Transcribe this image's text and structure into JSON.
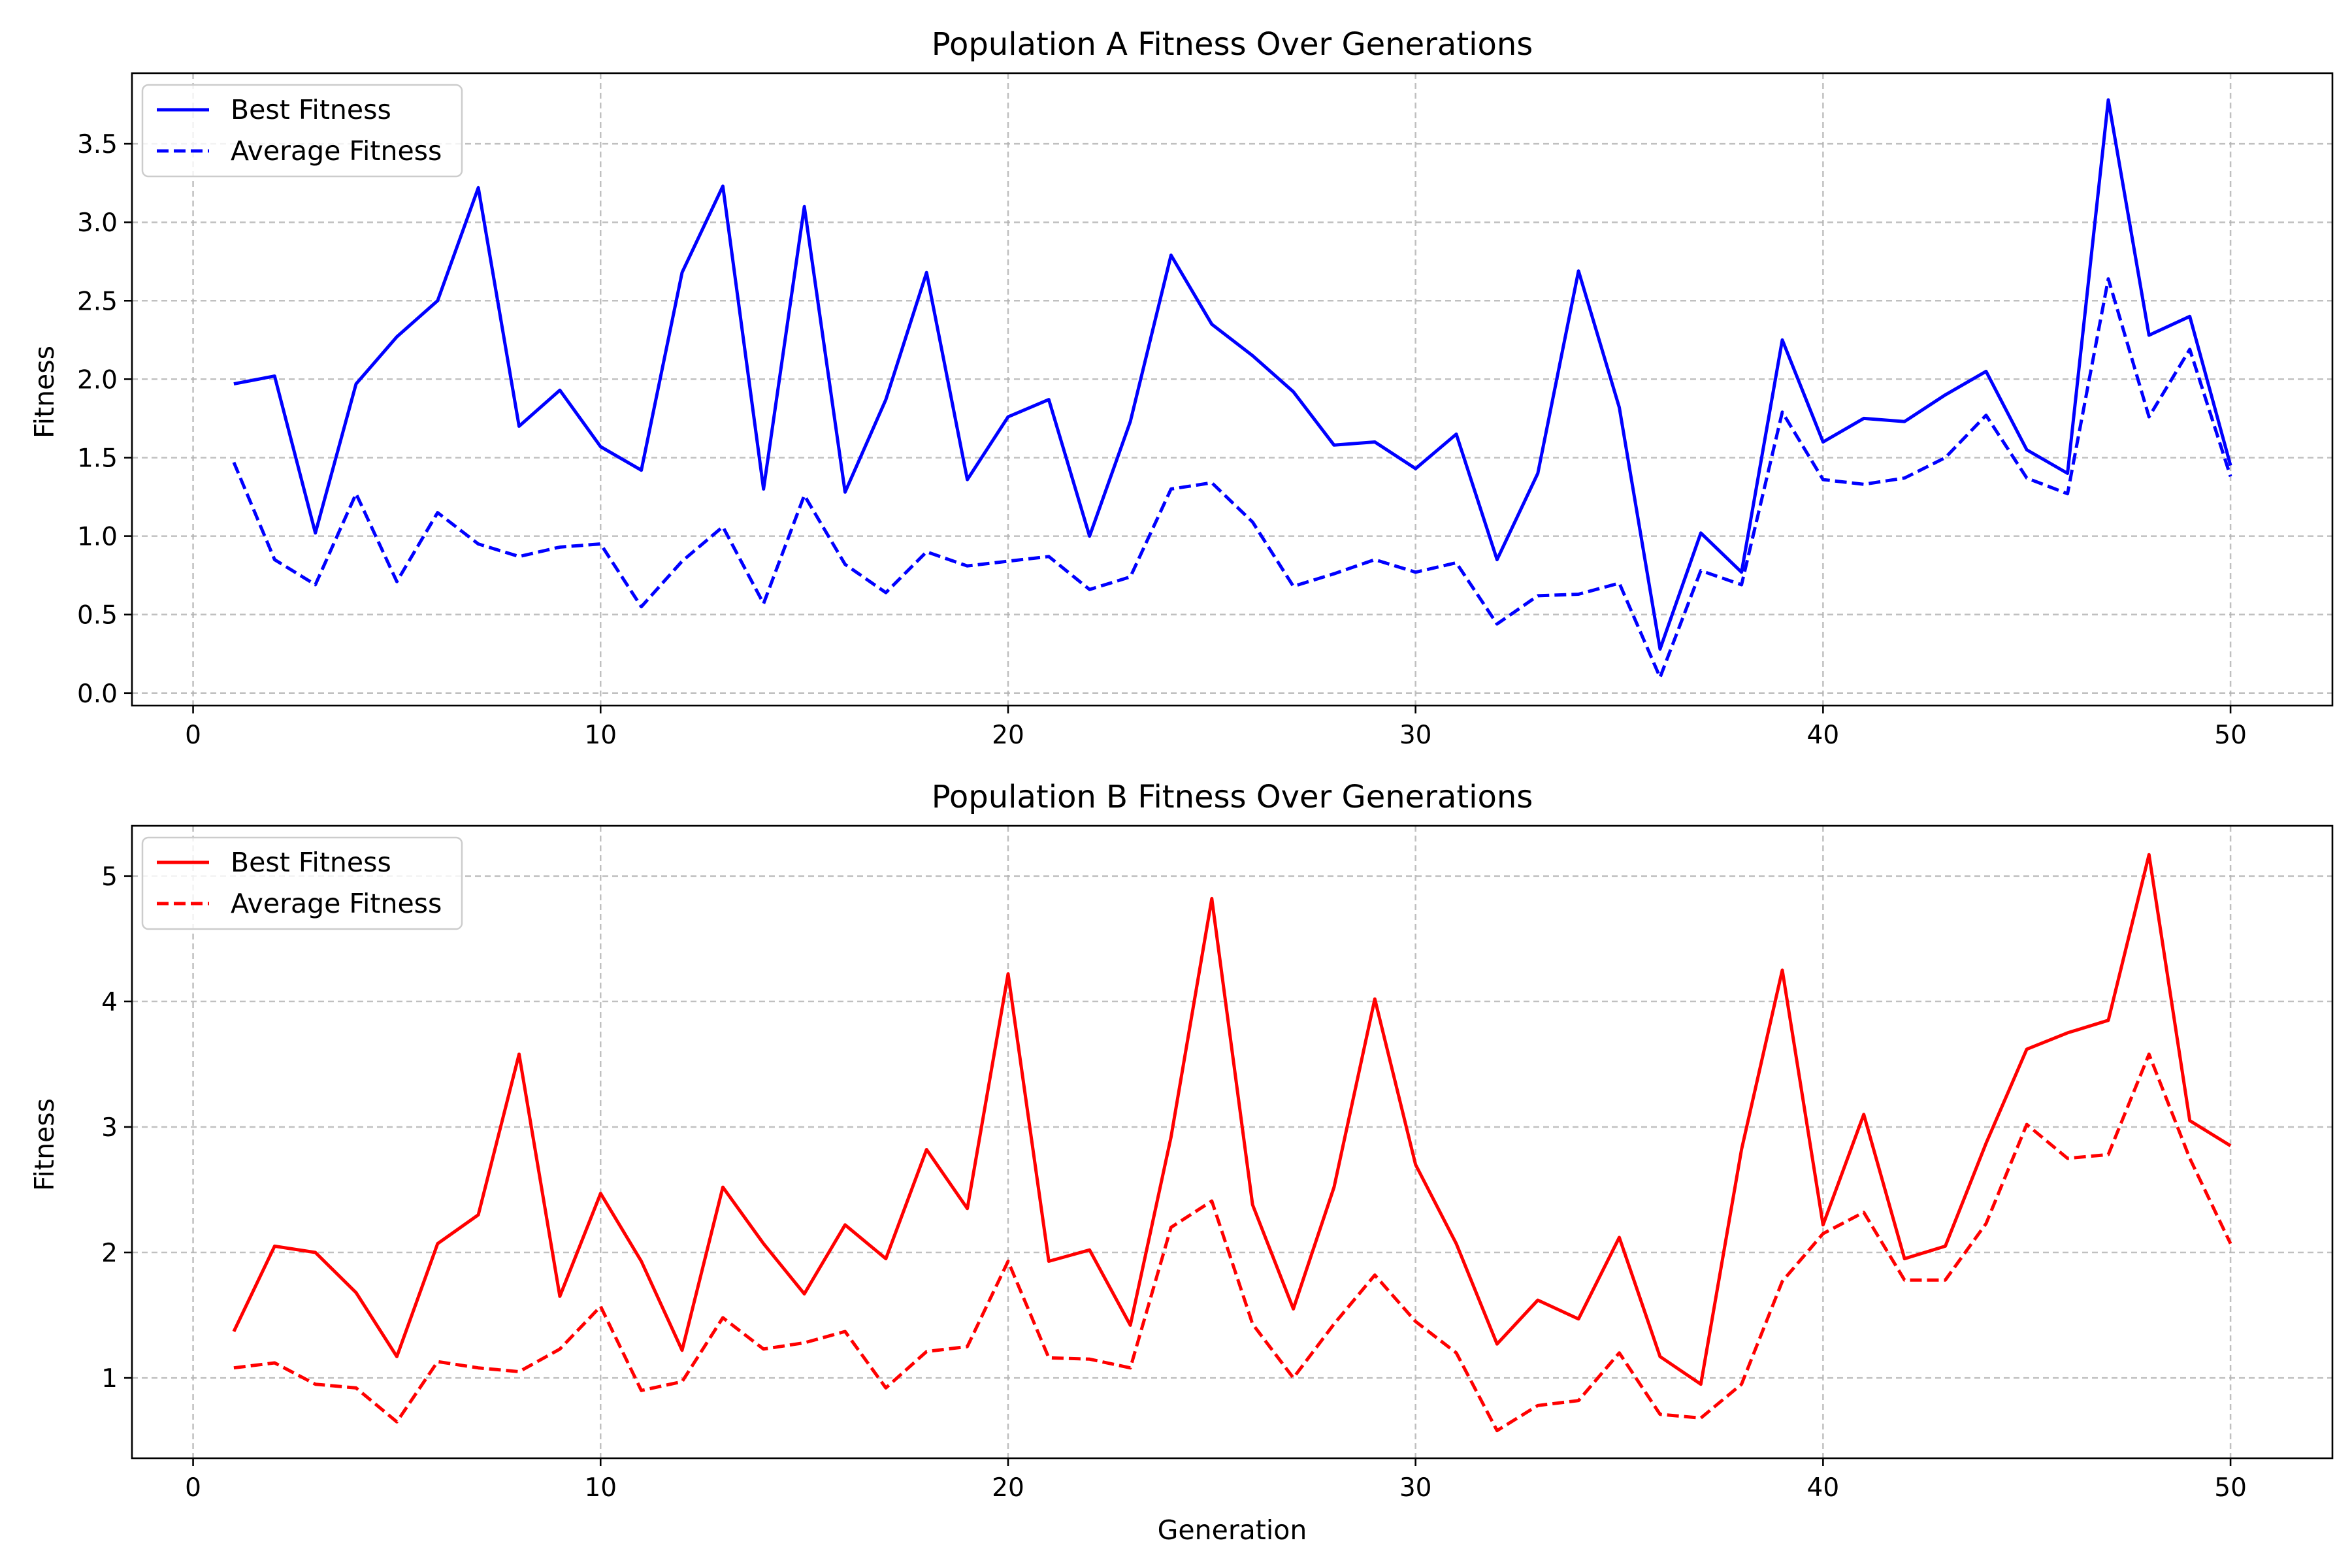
{
  "chart_data": [
    {
      "type": "line",
      "title": "Population A Fitness Over Generations",
      "xlabel": "",
      "ylabel": "Fitness",
      "xlim": [
        -1.5,
        52.5
      ],
      "ylim": [
        -0.08,
        3.95
      ],
      "xticks": [
        0,
        10,
        20,
        30,
        40,
        50
      ],
      "xtick_labels": [
        "0",
        "10",
        "20",
        "30",
        "40",
        "50"
      ],
      "yticks": [
        0.0,
        0.5,
        1.0,
        1.5,
        2.0,
        2.5,
        3.0,
        3.5
      ],
      "ytick_labels": [
        "0.0",
        "0.5",
        "1.0",
        "1.5",
        "2.0",
        "2.5",
        "3.0",
        "3.5"
      ],
      "grid": true,
      "legend_position": "top-left",
      "x": [
        1,
        2,
        3,
        4,
        5,
        6,
        7,
        8,
        9,
        10,
        11,
        12,
        13,
        14,
        15,
        16,
        17,
        18,
        19,
        20,
        21,
        22,
        23,
        24,
        25,
        26,
        27,
        28,
        29,
        30,
        31,
        32,
        33,
        34,
        35,
        36,
        37,
        38,
        39,
        40,
        41,
        42,
        43,
        44,
        45,
        46,
        47,
        48,
        49,
        50
      ],
      "series": [
        {
          "name": "Best Fitness",
          "color": "#0000ff",
          "style": "solid",
          "values": [
            1.97,
            2.02,
            1.02,
            1.97,
            2.27,
            2.5,
            3.22,
            1.7,
            1.93,
            1.57,
            1.42,
            2.68,
            3.23,
            1.3,
            3.1,
            1.28,
            1.87,
            2.68,
            1.36,
            1.76,
            1.87,
            1.0,
            1.73,
            2.79,
            2.35,
            2.15,
            1.92,
            1.58,
            1.6,
            1.43,
            1.65,
            0.85,
            1.4,
            2.69,
            1.82,
            0.28,
            1.02,
            0.77,
            2.25,
            1.6,
            1.75,
            1.73,
            1.9,
            2.05,
            1.55,
            1.4,
            3.78,
            2.28,
            2.4,
            1.45
          ]
        },
        {
          "name": "Average Fitness",
          "color": "#0000ff",
          "style": "dashed",
          "values": [
            1.47,
            0.85,
            0.69,
            1.27,
            0.71,
            1.15,
            0.95,
            0.87,
            0.93,
            0.95,
            0.55,
            0.84,
            1.06,
            0.57,
            1.26,
            0.82,
            0.64,
            0.9,
            0.81,
            0.84,
            0.87,
            0.66,
            0.74,
            1.3,
            1.34,
            1.09,
            0.68,
            0.76,
            0.85,
            0.77,
            0.83,
            0.44,
            0.62,
            0.63,
            0.7,
            0.1,
            0.78,
            0.69,
            1.79,
            1.36,
            1.33,
            1.37,
            1.5,
            1.77,
            1.37,
            1.27,
            2.64,
            1.76,
            2.19,
            1.38
          ]
        }
      ]
    },
    {
      "type": "line",
      "title": "Population B Fitness Over Generations",
      "xlabel": "Generation",
      "ylabel": "Fitness",
      "xlim": [
        -1.5,
        52.5
      ],
      "ylim": [
        0.36,
        5.4
      ],
      "xticks": [
        0,
        10,
        20,
        30,
        40,
        50
      ],
      "xtick_labels": [
        "0",
        "10",
        "20",
        "30",
        "40",
        "50"
      ],
      "yticks": [
        1,
        2,
        3,
        4,
        5
      ],
      "ytick_labels": [
        "1",
        "2",
        "3",
        "4",
        "5"
      ],
      "grid": true,
      "legend_position": "top-left",
      "x": [
        1,
        2,
        3,
        4,
        5,
        6,
        7,
        8,
        9,
        10,
        11,
        12,
        13,
        14,
        15,
        16,
        17,
        18,
        19,
        20,
        21,
        22,
        23,
        24,
        25,
        26,
        27,
        28,
        29,
        30,
        31,
        32,
        33,
        34,
        35,
        36,
        37,
        38,
        39,
        40,
        41,
        42,
        43,
        44,
        45,
        46,
        47,
        48,
        49,
        50
      ],
      "series": [
        {
          "name": "Best Fitness",
          "color": "#ff0000",
          "style": "solid",
          "values": [
            1.37,
            2.05,
            2.0,
            1.68,
            1.17,
            2.07,
            2.3,
            3.58,
            1.65,
            2.47,
            1.93,
            1.22,
            2.52,
            2.07,
            1.67,
            2.22,
            1.95,
            2.82,
            2.35,
            4.22,
            1.93,
            2.02,
            1.42,
            2.92,
            4.82,
            2.38,
            1.55,
            2.52,
            4.02,
            2.7,
            2.07,
            1.27,
            1.62,
            1.47,
            2.12,
            1.17,
            0.95,
            2.82,
            4.25,
            2.22,
            3.1,
            1.95,
            2.05,
            2.87,
            3.62,
            3.75,
            3.85,
            5.17,
            3.05,
            2.85
          ]
        },
        {
          "name": "Average Fitness",
          "color": "#ff0000",
          "style": "dashed",
          "values": [
            1.08,
            1.12,
            0.95,
            0.92,
            0.65,
            1.13,
            1.08,
            1.05,
            1.23,
            1.57,
            0.9,
            0.97,
            1.48,
            1.23,
            1.28,
            1.37,
            0.92,
            1.21,
            1.25,
            1.93,
            1.16,
            1.15,
            1.08,
            2.2,
            2.41,
            1.43,
            1.0,
            1.43,
            1.82,
            1.45,
            1.2,
            0.58,
            0.78,
            0.82,
            1.2,
            0.71,
            0.68,
            0.95,
            1.77,
            2.15,
            2.32,
            1.78,
            1.78,
            2.23,
            3.02,
            2.75,
            2.78,
            3.58,
            2.75,
            2.07
          ]
        }
      ]
    }
  ]
}
